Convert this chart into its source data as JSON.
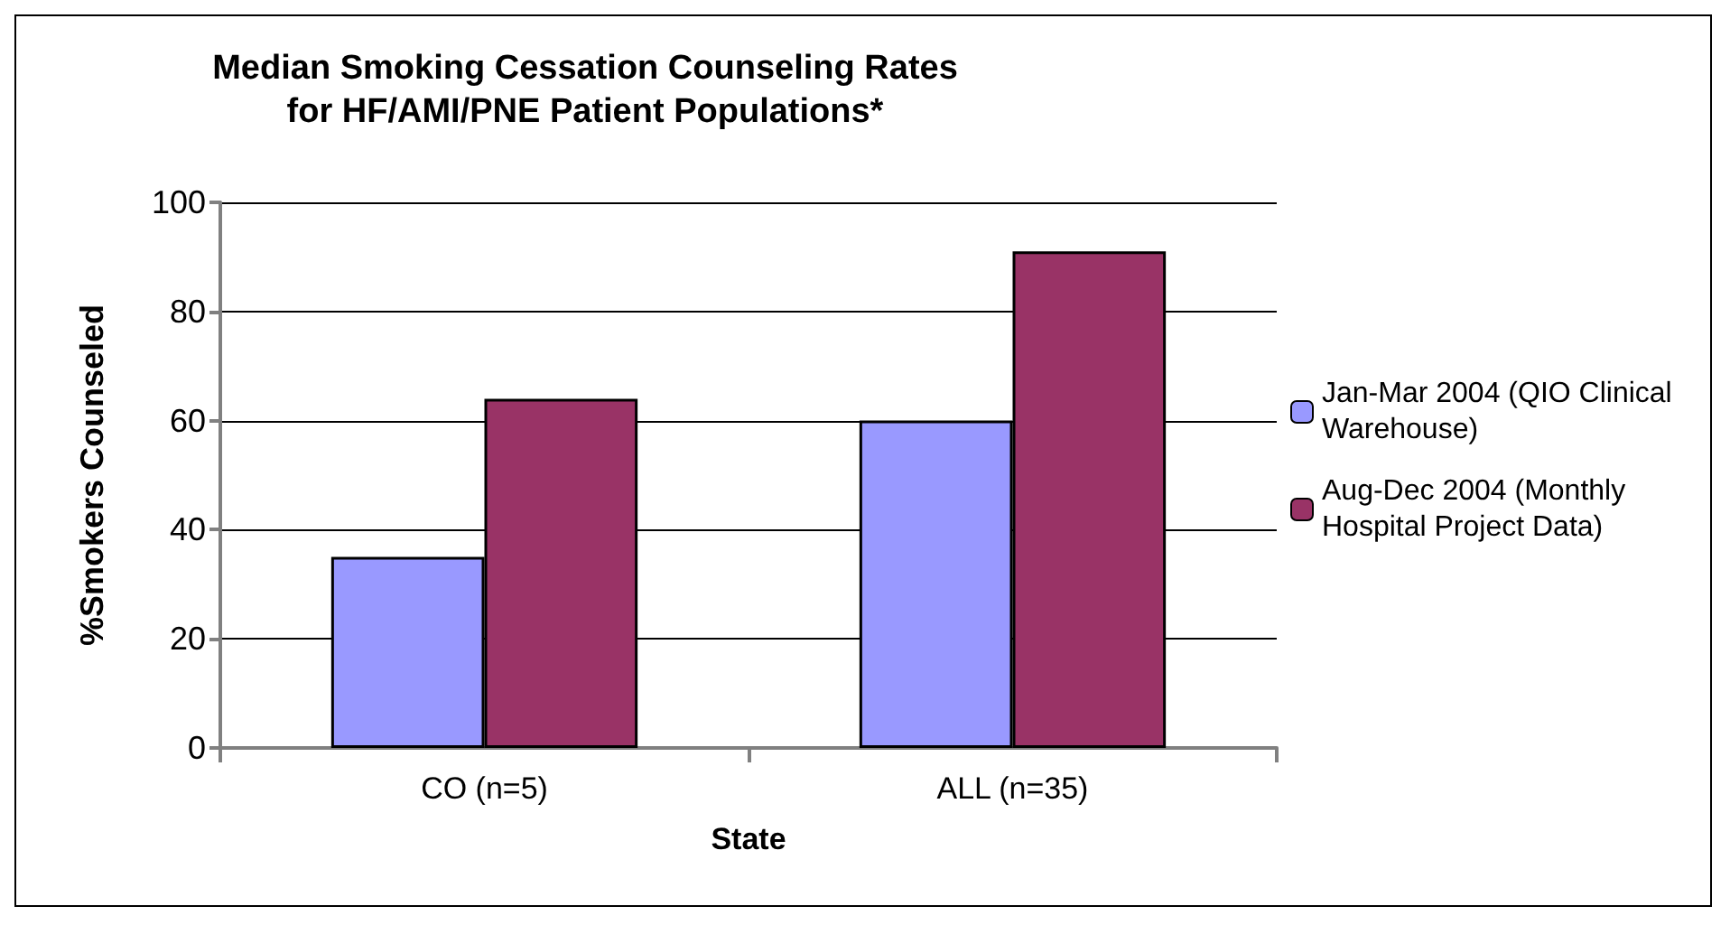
{
  "chart_data": {
    "type": "bar",
    "title": "Median Smoking Cessation Counseling Rates\nfor HF/AMI/PNE Patient Populations*",
    "xlabel": "State",
    "ylabel": "%Smokers Counseled",
    "categories": [
      "CO (n=5)",
      "ALL (n=35)"
    ],
    "series": [
      {
        "name": "Jan-Mar 2004 (QIO Clinical Warehouse)",
        "color": "#9999ff",
        "values": [
          35,
          60
        ]
      },
      {
        "name": "Aug-Dec 2004 (Monthly Hospital Project Data)",
        "color": "#993366",
        "values": [
          64,
          91
        ]
      }
    ],
    "ylim": [
      0,
      100
    ],
    "yticks": [
      0,
      20,
      40,
      60,
      80,
      100
    ],
    "grid": "y",
    "legend": "right"
  }
}
